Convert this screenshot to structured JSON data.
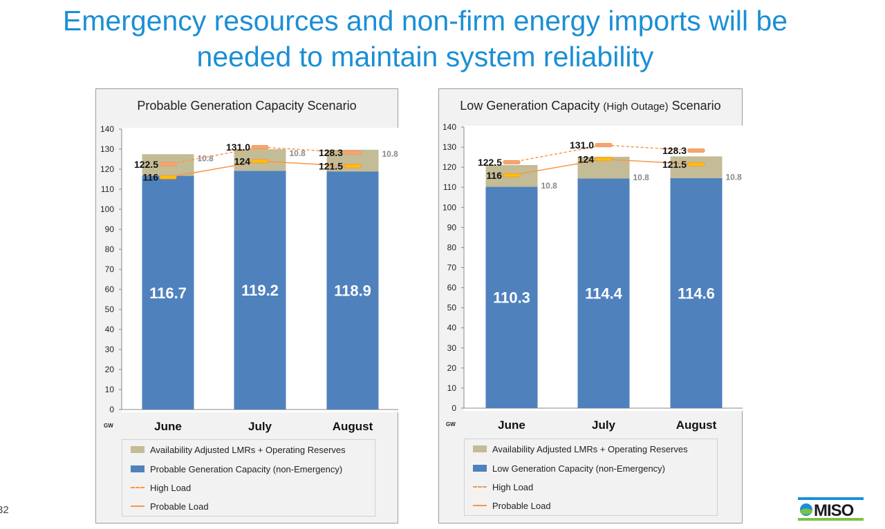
{
  "slide": {
    "title_line1": "Emergency resources and non-firm energy imports will be",
    "title_line2": "needed to maintain system reliability",
    "page_number": "32",
    "logo_text": "MISO"
  },
  "colors": {
    "generation": "#4f81bd",
    "reserves": "#c4bc96",
    "load": "#f79646",
    "marker_probable": "#ffc000",
    "title": "#1a8fd6"
  },
  "chart_data": [
    {
      "type": "bar",
      "stacked": true,
      "title": "Probable Generation Capacity Scenario",
      "title_small": "",
      "title_suffix": "",
      "ylabel": "GW",
      "ylim": [
        0,
        140
      ],
      "yticks": [
        0,
        10,
        20,
        30,
        40,
        50,
        60,
        70,
        80,
        90,
        100,
        110,
        120,
        130,
        140
      ],
      "grid": false,
      "legend_position": "bottom",
      "categories": [
        "June",
        "July",
        "August"
      ],
      "series": [
        {
          "name": "Probable Generation Capacity (non-Emergency)",
          "kind": "bar",
          "values": [
            116.7,
            119.2,
            118.9
          ],
          "labels": [
            "116.7",
            "119.2",
            "118.9"
          ]
        },
        {
          "name": "Availability Adjusted LMRs + Operating Reserves",
          "kind": "bar",
          "values": [
            10.8,
            10.8,
            10.8
          ],
          "labels": [
            "10.8",
            "10.8",
            "10.8"
          ]
        },
        {
          "name": "High Load",
          "kind": "line-dashed",
          "values": [
            122.5,
            131.0,
            128.3
          ],
          "labels": [
            "122.5",
            "131.0",
            "128.3"
          ]
        },
        {
          "name": "Probable Load",
          "kind": "line",
          "values": [
            116,
            124,
            121.5
          ],
          "labels": [
            "116",
            "124",
            "121.5"
          ]
        }
      ],
      "legend": [
        "Availability Adjusted LMRs + Operating Reserves",
        "Probable Generation Capacity (non-Emergency)",
        "High Load",
        "Probable Load"
      ]
    },
    {
      "type": "bar",
      "stacked": true,
      "title": "Low Generation Capacity ",
      "title_small": "(High Outage)",
      "title_suffix": " Scenario",
      "ylabel": "GW",
      "ylim": [
        0,
        140
      ],
      "yticks": [
        0,
        10,
        20,
        30,
        40,
        50,
        60,
        70,
        80,
        90,
        100,
        110,
        120,
        130,
        140
      ],
      "grid": false,
      "legend_position": "bottom",
      "categories": [
        "June",
        "July",
        "August"
      ],
      "series": [
        {
          "name": "Low Generation Capacity (non-Emergency)",
          "kind": "bar",
          "values": [
            110.3,
            114.4,
            114.6
          ],
          "labels": [
            "110.3",
            "114.4",
            "114.6"
          ]
        },
        {
          "name": "Availability Adjusted LMRs + Operating Reserves",
          "kind": "bar",
          "values": [
            10.8,
            10.8,
            10.8
          ],
          "labels": [
            "10.8",
            "10.8",
            "10.8"
          ]
        },
        {
          "name": "High Load",
          "kind": "line-dashed",
          "values": [
            122.5,
            131.0,
            128.3
          ],
          "labels": [
            "122.5",
            "131.0",
            "128.3"
          ]
        },
        {
          "name": "Probable Load",
          "kind": "line",
          "values": [
            116,
            124,
            121.5
          ],
          "labels": [
            "116",
            "124",
            "121.5"
          ]
        }
      ],
      "legend": [
        "Availability Adjusted LMRs + Operating Reserves",
        "Low Generation Capacity (non-Emergency)",
        "High Load",
        "Probable Load"
      ]
    }
  ]
}
